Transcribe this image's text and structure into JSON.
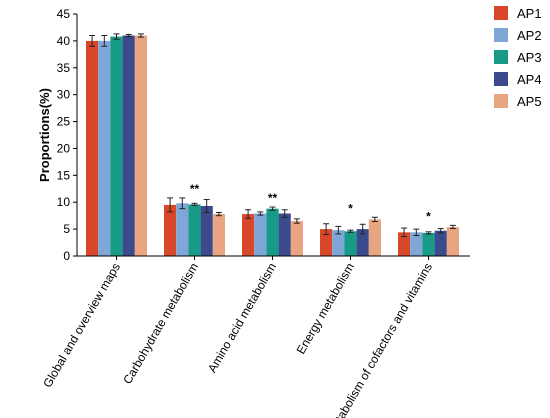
{
  "chart_data": {
    "type": "bar",
    "title": "",
    "xlabel": "",
    "ylabel": "Proportions(%)",
    "ylim": [
      0,
      45
    ],
    "yticks": [
      0,
      5,
      10,
      15,
      20,
      25,
      30,
      35,
      40,
      45
    ],
    "grid": false,
    "legend_position": "top-right",
    "categories": [
      "Global and overview maps",
      "Carbohydrate metabolism",
      "Amino acid metabolism",
      "Energy metabolism",
      "Metabolism of cofactors and vitamins"
    ],
    "significance": [
      "",
      "**",
      "**",
      "*",
      "*"
    ],
    "series": [
      {
        "name": "AP1",
        "color": "#d9472b",
        "values": [
          40.0,
          9.5,
          7.8,
          5.0,
          4.4
        ],
        "errors": [
          1.0,
          1.3,
          0.8,
          1.0,
          0.8
        ]
      },
      {
        "name": "AP2",
        "color": "#7ea7d8",
        "values": [
          40.0,
          9.8,
          7.9,
          4.8,
          4.4
        ],
        "errors": [
          1.0,
          1.0,
          0.3,
          0.7,
          0.6
        ]
      },
      {
        "name": "AP3",
        "color": "#179a86",
        "values": [
          40.8,
          9.6,
          8.8,
          4.6,
          4.3
        ],
        "errors": [
          0.5,
          0.2,
          0.3,
          0.2,
          0.2
        ]
      },
      {
        "name": "AP4",
        "color": "#3b4a8c",
        "values": [
          41.0,
          9.3,
          7.9,
          5.0,
          4.7
        ],
        "errors": [
          0.2,
          1.2,
          0.7,
          0.9,
          0.4
        ]
      },
      {
        "name": "AP5",
        "color": "#e9a482",
        "values": [
          41.0,
          7.8,
          6.5,
          6.8,
          5.4
        ],
        "errors": [
          0.3,
          0.3,
          0.4,
          0.4,
          0.3
        ]
      }
    ]
  }
}
